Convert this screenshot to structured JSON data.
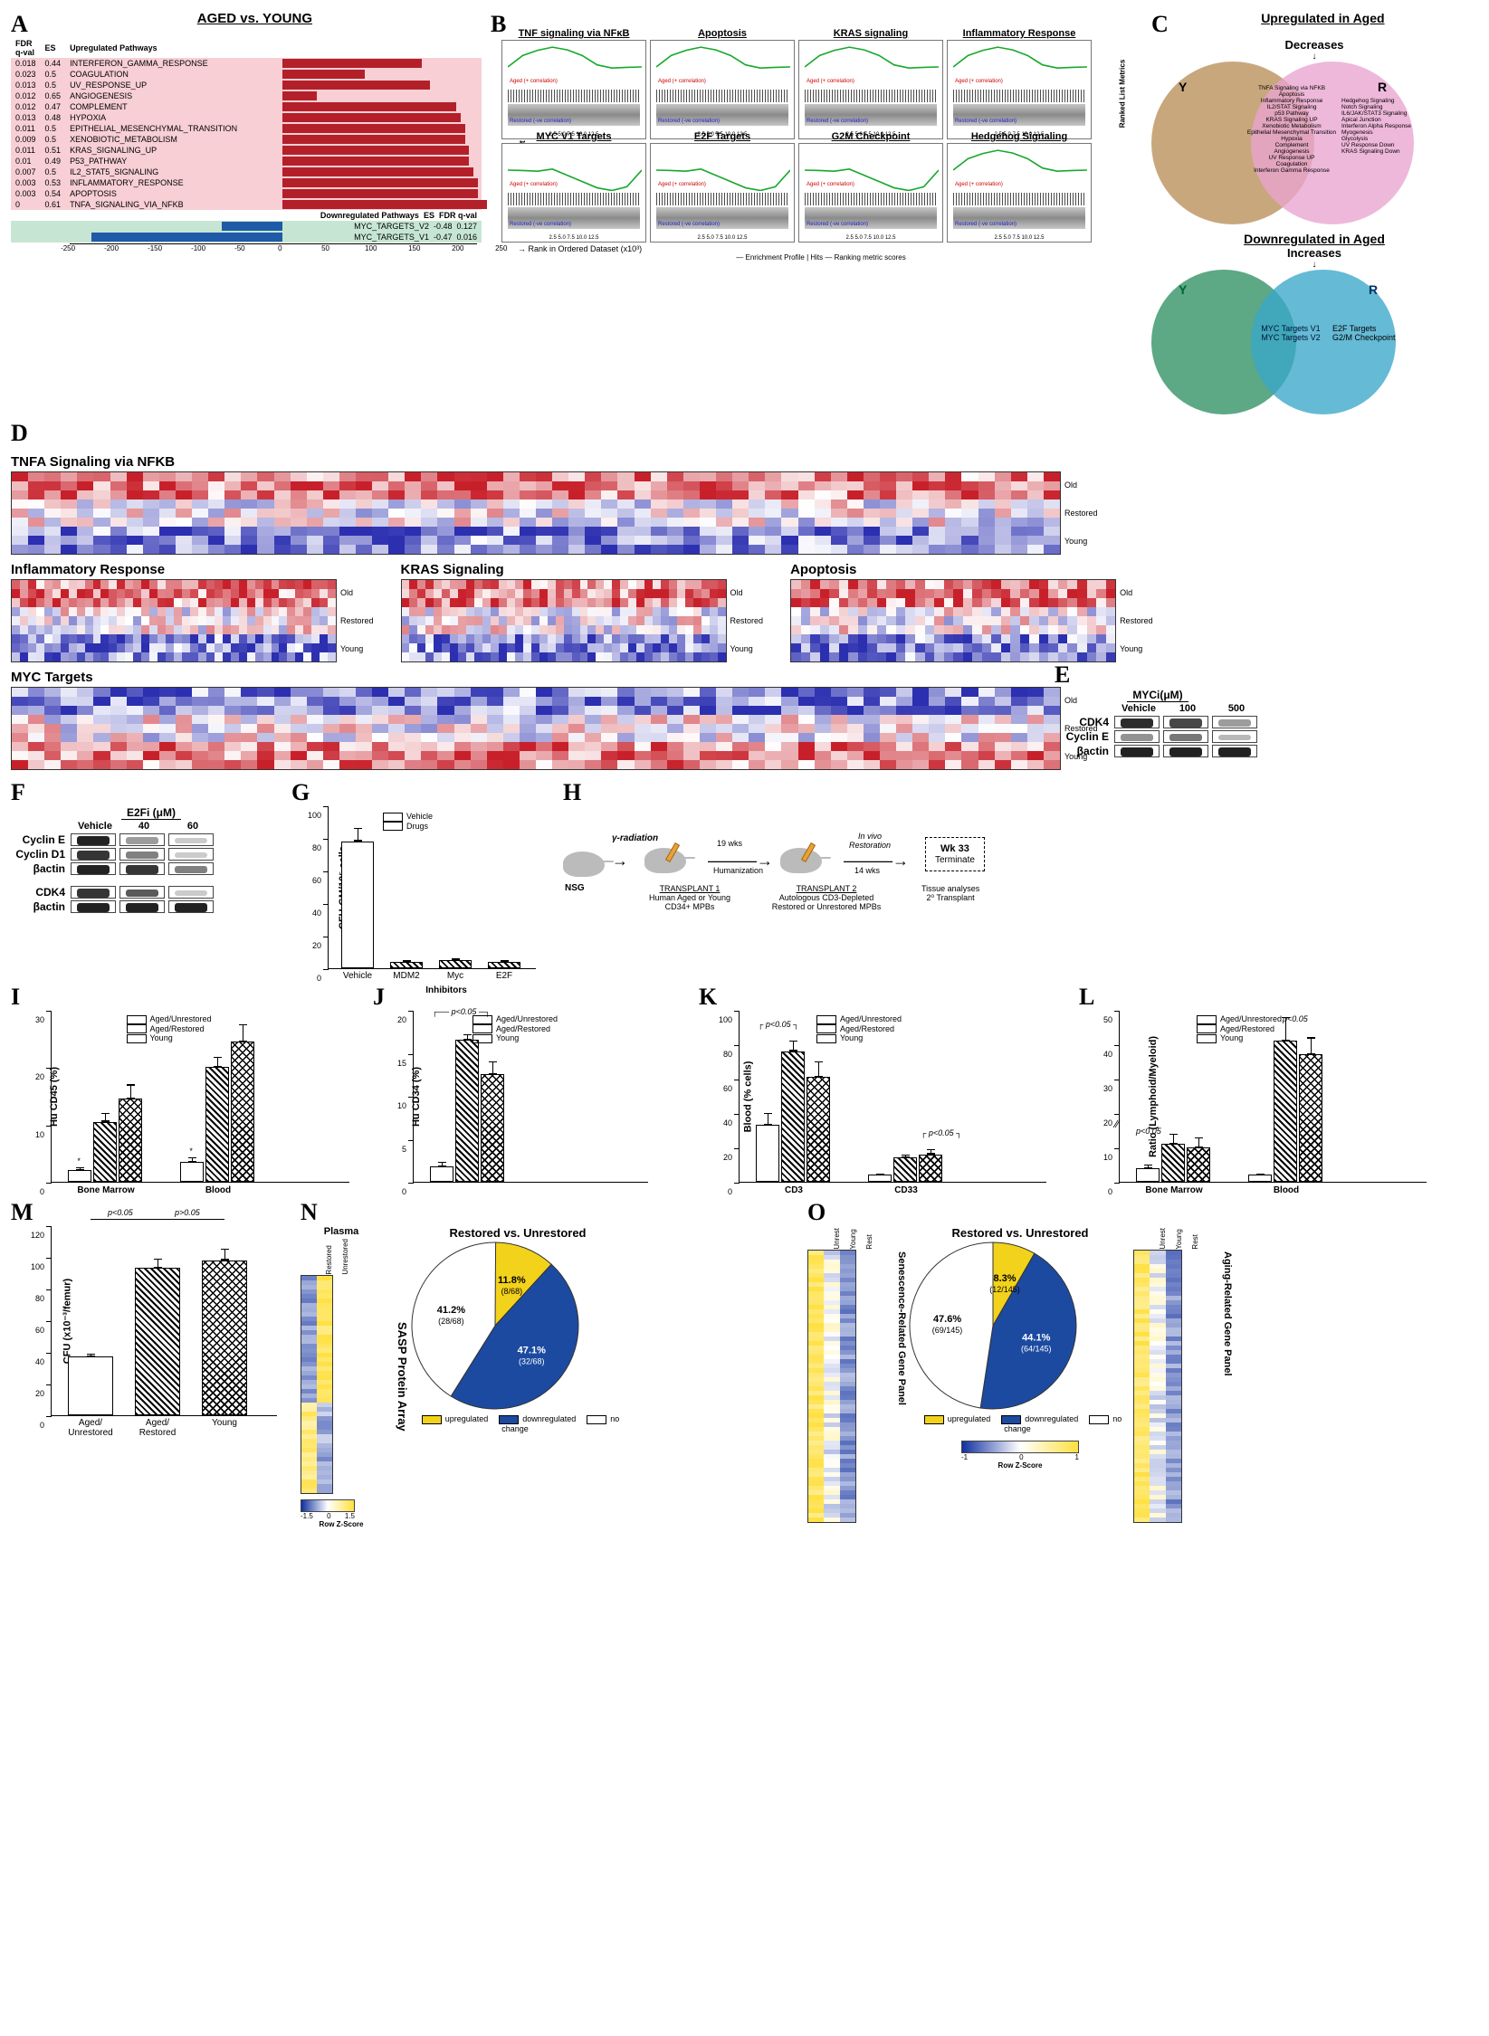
{
  "colors": {
    "up_bar": "#b3202a",
    "down_bar": "#1e5aa8",
    "pink": "#f7cfd5",
    "green": "#c6e6d3",
    "venn_Y": "#b98e59",
    "venn_R": "#e9a4cf",
    "venn_Y2": "#2f8f63",
    "venn_R2": "#3aa7c9",
    "pie_up": "#f2d21b",
    "pie_down": "#1c4aa0",
    "pie_none": "#ffffff"
  },
  "panelA": {
    "title": "AGED vs. YOUNG",
    "headers_up": [
      "FDR q-val",
      "ES",
      "Upregulated   Pathways"
    ],
    "headers_down": [
      "Downregulated  Pathways",
      "ES",
      "FDR q-val"
    ],
    "x_range": [
      -250,
      250
    ],
    "up": [
      {
        "q": "0.018",
        "es": "0.44",
        "name": "INTERFERON_GAMMA_RESPONSE",
        "val": 160
      },
      {
        "q": "0.023",
        "es": "0.5",
        "name": "COAGULATION",
        "val": 95
      },
      {
        "q": "0.013",
        "es": "0.5",
        "name": "UV_RESPONSE_UP",
        "val": 170
      },
      {
        "q": "0.012",
        "es": "0.65",
        "name": "ANGIOGENESIS",
        "val": 40
      },
      {
        "q": "0.012",
        "es": "0.47",
        "name": "COMPLEMENT",
        "val": 200
      },
      {
        "q": "0.013",
        "es": "0.48",
        "name": "HYPOXIA",
        "val": 205
      },
      {
        "q": "0.011",
        "es": "0.5",
        "name": "EPITHELIAL_MESENCHYMAL_TRANSITION",
        "val": 210
      },
      {
        "q": "0.009",
        "es": "0.5",
        "name": "XENOBIOTIC_METABOLISM",
        "val": 210
      },
      {
        "q": "0.011",
        "es": "0.51",
        "name": "KRAS_SIGNALING_UP",
        "val": 215
      },
      {
        "q": "0.01",
        "es": "0.49",
        "name": "P53_PATHWAY",
        "val": 215
      },
      {
        "q": "0.007",
        "es": "0.5",
        "name": "IL2_STAT5_SIGNALING",
        "val": 220
      },
      {
        "q": "0.003",
        "es": "0.53",
        "name": "INFLAMMATORY_RESPONSE",
        "val": 225
      },
      {
        "q": "0.003",
        "es": "0.54",
        "name": "APOPTOSIS",
        "val": 225
      },
      {
        "q": "0",
        "es": "0.61",
        "name": "TNFA_SIGNALING_VIA_NFKB",
        "val": 235
      }
    ],
    "down": [
      {
        "name": "MYC_TARGETS_V2",
        "es": "-0.48",
        "q": "0.127",
        "val": -70
      },
      {
        "name": "MYC_TARGETS_V1",
        "es": "-0.47",
        "q": "0.016",
        "val": -220
      }
    ]
  },
  "panelB": {
    "plots": [
      "TNF signaling via NFκB",
      "Apoptosis",
      "KRAS signaling",
      "Inflammatory Response",
      "MYC V1 Targets",
      "E2F Targets",
      "G2M Checkpoint",
      "Hedgehog Signaling"
    ],
    "xaxis": "Rank in Ordered Dataset   (x10³)",
    "ylabel_left": "Enrichment Score (ES)",
    "ylabel_right": "Ranked List Metrics",
    "aged": "Aged (+ correlation)",
    "restored": "Restored (-ve correlation)",
    "legend": "— Enrichment Profile   | Hits   — Ranking metric scores",
    "up_shape": [
      0,
      0.55,
      0.8,
      0.95,
      0.82,
      0.55,
      0.1,
      -0.05,
      -0.02,
      0
    ],
    "down_shape": [
      0,
      -0.02,
      -0.05,
      0.05,
      -0.25,
      -0.55,
      -0.85,
      -0.98,
      -0.8,
      0
    ]
  },
  "panelC": {
    "up_title": "Upregulated in Aged",
    "down_title": "Downregulated in Aged",
    "decrease": "Decreases",
    "increase": "Increases",
    "Y": "Y",
    "R": "R",
    "shared_up": "TNFA Signaling via NFKB\nApoptosis\nInflammatory Response\nIL2/STAT Signaling\np53 Pathway\nKRAS Signaling UP\nXenobiotic Metabolism\nEpithelial Mesenchymal Transition\nHypoxia\nComplement\nAngiogenesis\nUV Response UP\nCoagulation\nInterferon Gamma Response",
    "R_only_up": "Hedgehog Signaling\nNotch Signaling\nIL6/JAK/STAT3 Signaling\nApical Junction\nInterferon Alpha Response\nMyogenesis\nGlycolysis\nUV Response Down\nKRAS Signaling Down",
    "shared_down": "MYC Targets V1\nMYC Targets V2",
    "R_only_down": "E2F Targets\nG2/M Checkpoint"
  },
  "panelD": {
    "maps": [
      {
        "title": "TNFA Signaling via NFKB",
        "cols": 64,
        "wide": true
      },
      {
        "title": "Inflammatory Response",
        "cols": 40
      },
      {
        "title": "KRAS Signaling",
        "cols": 40
      },
      {
        "title": "Apoptosis",
        "cols": 34
      },
      {
        "title": "MYC Targets",
        "cols": 64,
        "wide": true,
        "invert": true
      }
    ],
    "row_groups": [
      "Old",
      "Restored",
      "Young"
    ],
    "rows_per_group": 3,
    "palette_low": "#2b2fb0",
    "palette_mid": "#ffffff",
    "palette_high": "#c8202a"
  },
  "panelE": {
    "title": "MYCi(μM)",
    "cols": [
      "Vehicle",
      "100",
      "500"
    ],
    "rows": [
      "CDK4",
      "Cyclin E",
      "βactin"
    ],
    "intens": [
      [
        0.95,
        0.8,
        0.35
      ],
      [
        0.4,
        0.55,
        0.2
      ],
      [
        1,
        1,
        1
      ]
    ]
  },
  "panelF": {
    "title": "E2Fi (μM)",
    "cols": [
      "Vehicle",
      "40",
      "60"
    ],
    "rows1": [
      "Cyclin E",
      "Cyclin D1",
      "βactin"
    ],
    "intens1": [
      [
        1,
        0.35,
        0.1
      ],
      [
        0.9,
        0.5,
        0.1
      ],
      [
        1,
        0.9,
        0.5
      ]
    ],
    "rows2": [
      "CDK4",
      "βactin"
    ],
    "intens2": [
      [
        0.9,
        0.7,
        0.1
      ],
      [
        1,
        1,
        1
      ]
    ]
  },
  "panelG": {
    "ylab": "CFU-GM/10⁵ cells",
    "ymax": 100,
    "ytick": 20,
    "legend": [
      "Vehicle",
      "Drugs"
    ],
    "xcats": [
      "Vehicle",
      "MDM2",
      "Myc",
      "E2F"
    ],
    "xgroup": "Inhibitors",
    "vals": [
      78,
      4,
      5,
      4
    ],
    "errs": [
      8,
      1,
      1,
      1
    ],
    "fills": [
      "open",
      "hatch",
      "hatch",
      "hatch"
    ]
  },
  "panelH": {
    "nsg": "NSG",
    "gamma": "γ-radiation",
    "t1a": "TRANSPLANT 1",
    "t1b": "Human Aged or Young",
    "t1c": "CD34+ MPBs",
    "hum": "Humanization",
    "hum_wk": "19 wks",
    "t2a": "TRANSPLANT 2",
    "t2b": "Autologous CD3-Depleted",
    "t2c": "Restored or Unrestored MPBs",
    "invivo": "In vivo\nRestoration",
    "invivo_wk": "14 wks",
    "term": "Wk 33",
    "term2": "Terminate",
    "term3": "Tissue analyses\n2⁰ Transplant"
  },
  "panelI": {
    "ylab": "Hu CD45 (%)",
    "ymax": 30,
    "ytick": 10,
    "legend": [
      "Aged/Unrestored",
      "Aged/Restored",
      "Young"
    ],
    "groups": [
      "Bone Marrow",
      "Blood"
    ],
    "vals": [
      [
        2,
        10.5,
        14.5
      ],
      [
        3.5,
        20,
        24.5
      ]
    ],
    "errs": [
      [
        0.6,
        1.5,
        2.5
      ],
      [
        0.8,
        1.8,
        3
      ]
    ],
    "stars": [
      [
        "*",
        "",
        ""
      ],
      [
        "*",
        "",
        ""
      ]
    ]
  },
  "panelJ": {
    "ylab": "Hu CD34 (%)",
    "ymax": 20,
    "ytick": 5,
    "legend": [
      "Aged/Unrestored",
      "Aged/Restored",
      "Young"
    ],
    "vals": [
      1.8,
      16.5,
      12.5
    ],
    "errs": [
      0.5,
      0.7,
      1.5
    ],
    "sig": "p<0.05"
  },
  "panelK": {
    "ylab": "Blood (% cells)",
    "ymax": 100,
    "ytick": 20,
    "legend": [
      "Aged/Unrestored",
      "Aged/Restored",
      "Young"
    ],
    "groups": [
      "CD3",
      "CD33"
    ],
    "vals": [
      [
        33,
        76,
        61
      ],
      [
        4,
        14,
        16
      ]
    ],
    "errs": [
      [
        7,
        6,
        9
      ],
      [
        1,
        2,
        3
      ]
    ],
    "sig": "p<0.05"
  },
  "panelL": {
    "ylab": "Ratio (Lymphoid/Myeloid)",
    "ymax": 50,
    "ytick": 10,
    "break": true,
    "legend": [
      "Aged/Unrestored",
      "Aged/Restored",
      "Young"
    ],
    "groups": [
      "Bone Marrow",
      "Blood"
    ],
    "vals": [
      [
        4,
        11,
        10
      ],
      [
        2,
        41,
        37
      ]
    ],
    "errs": [
      [
        1,
        3,
        3
      ],
      [
        0.5,
        7,
        5
      ]
    ],
    "sig": "p<0.05"
  },
  "panelM": {
    "ylab": "CFU (x10⁻³/femur)",
    "ymax": 120,
    "ytick": 20,
    "xcats": [
      "Aged/\nUnrestored",
      "Aged/\nRestored",
      "Young"
    ],
    "vals": [
      37,
      93,
      98
    ],
    "errs": [
      2,
      6,
      7
    ],
    "fills": [
      "open",
      "hatch",
      "cross"
    ],
    "sigs": [
      {
        "t": "p<0.05",
        "a": 0,
        "b": 1
      },
      {
        "t": "p>0.05",
        "a": 1,
        "b": 2
      }
    ]
  },
  "panelN": {
    "hm_title": "Plasma",
    "hm_cols": [
      "Restored",
      "Unrestored"
    ],
    "side": "SASP Protein Array",
    "pie_title": "Restored vs. Unrestored",
    "slices": [
      {
        "label": "11.8%\n(8/68)",
        "pct": 11.8,
        "key": "upregulated"
      },
      {
        "label": "47.1%\n(32/68)",
        "pct": 47.1,
        "key": "downregulated"
      },
      {
        "label": "41.2%\n(28/68)",
        "pct": 41.2,
        "key": "no change"
      }
    ],
    "legend": [
      "upregulated",
      "downregulated",
      "no change"
    ],
    "zs": "Row Z-Score",
    "zr": [
      -1.5,
      0,
      1.5
    ]
  },
  "panelO": {
    "hm1_title": "Senescence-Related Gene Panel",
    "hm2_title": "Aging-Related Gene Panel",
    "hm_cols": [
      "Unrest",
      "Young",
      "Rest"
    ],
    "pie_title": "Restored vs. Unrestored",
    "slices": [
      {
        "label": "8.3%\n(12/145)",
        "pct": 8.3,
        "key": "upregulated"
      },
      {
        "label": "44.1%\n(64/145)",
        "pct": 44.1,
        "key": "downregulated"
      },
      {
        "label": "47.6%\n(69/145)",
        "pct": 47.6,
        "key": "no change"
      }
    ],
    "legend": [
      "upregulated",
      "downregulated",
      "no change"
    ],
    "zs": "Row Z-Score",
    "zr": [
      -1,
      0,
      1
    ]
  }
}
